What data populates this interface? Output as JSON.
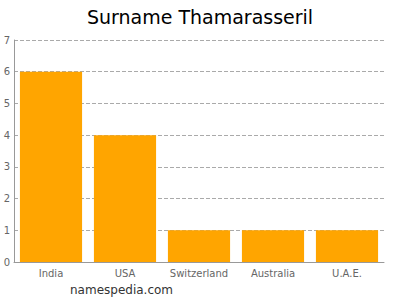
{
  "chart_data": {
    "type": "bar",
    "title": "Surname Thamarasseril",
    "categories": [
      "India",
      "USA",
      "Switzerland",
      "Australia",
      "U.A.E."
    ],
    "values": [
      6,
      4,
      1,
      1,
      1
    ],
    "color": "#ffa500",
    "ylim": [
      0,
      7
    ],
    "yticks": [
      0,
      1,
      2,
      3,
      4,
      5,
      6,
      7
    ],
    "grid": true,
    "annotation": "namespedia.com"
  }
}
